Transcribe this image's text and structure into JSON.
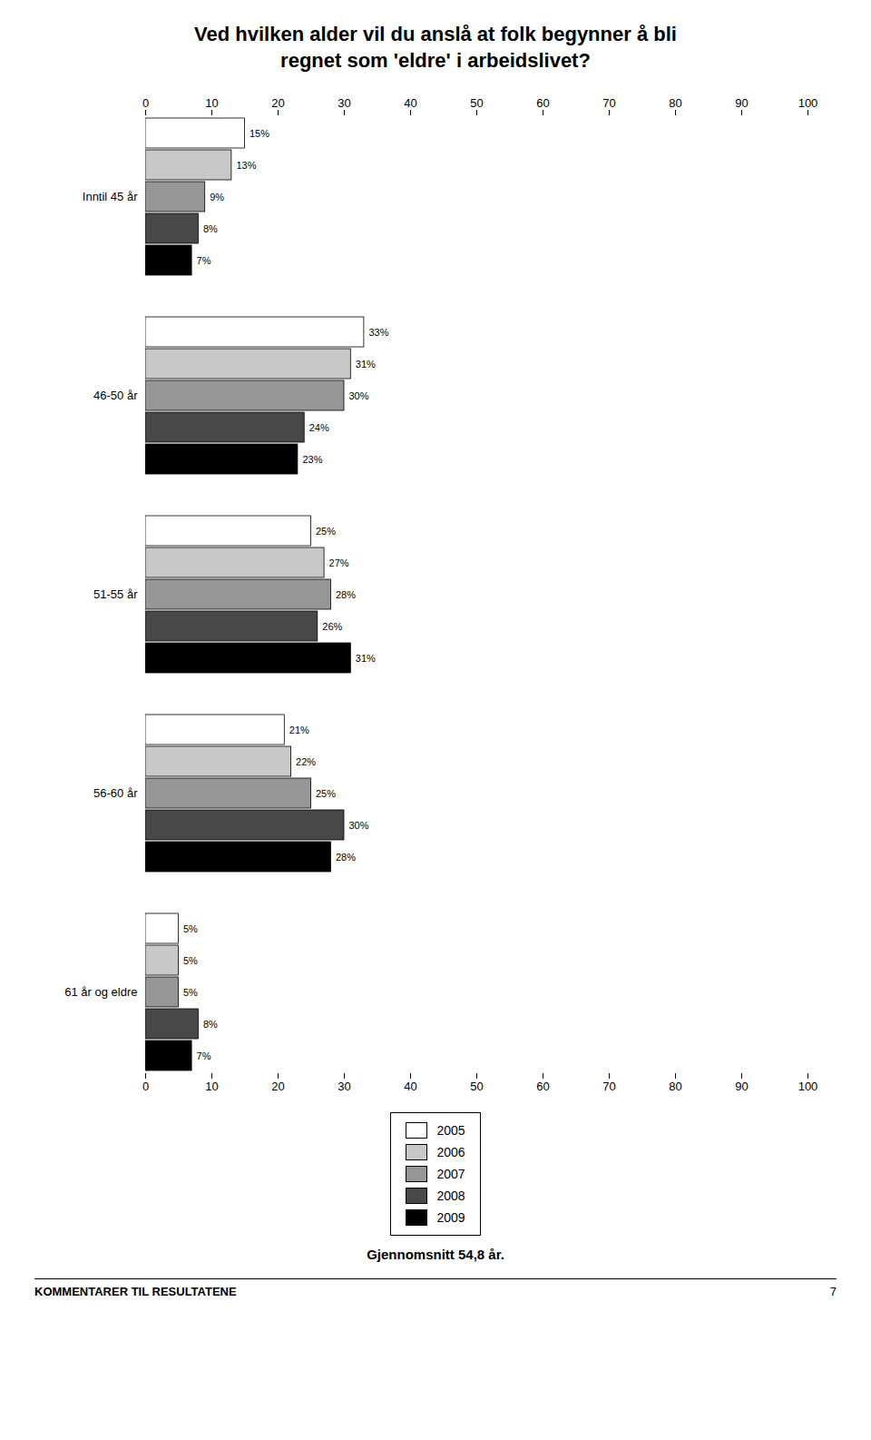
{
  "chart_data": {
    "type": "bar",
    "orientation": "horizontal",
    "title": "Ved hvilken alder vil du anslå at folk begynner å bli\nregnet som 'eldre' i arbeidslivet?",
    "categories": [
      "Inntil 45 år",
      "46-50 år",
      "51-55 år",
      "56-60 år",
      "61 år og eldre"
    ],
    "series": [
      {
        "name": "2005",
        "color": "#ffffff",
        "values": [
          15,
          33,
          25,
          21,
          5
        ],
        "value_labels": [
          "15%",
          "33%",
          "25%",
          "21%",
          "5%"
        ]
      },
      {
        "name": "2006",
        "color": "#c8c8c8",
        "values": [
          13,
          31,
          27,
          22,
          5
        ],
        "value_labels": [
          "13%",
          "31%",
          "27%",
          "22%",
          "5%"
        ]
      },
      {
        "name": "2007",
        "color": "#969696",
        "values": [
          9,
          30,
          28,
          25,
          5
        ],
        "value_labels": [
          "9%",
          "30%",
          "28%",
          "25%",
          "5%"
        ]
      },
      {
        "name": "2008",
        "color": "#484848",
        "values": [
          8,
          24,
          26,
          30,
          8
        ],
        "value_labels": [
          "8%",
          "24%",
          "26%",
          "30%",
          "8%"
        ]
      },
      {
        "name": "2009",
        "color": "#000000",
        "values": [
          7,
          23,
          31,
          28,
          7
        ],
        "value_labels": [
          "7%",
          "23%",
          "31%",
          "28%",
          "7%"
        ]
      }
    ],
    "xlim": [
      0,
      100
    ],
    "xticks": [
      0,
      10,
      20,
      30,
      40,
      50,
      60,
      70,
      80,
      90,
      100
    ],
    "data_labels": true,
    "legend": "bottom",
    "grid": false,
    "annotations": [
      "Gjennomsnitt 54,8 år.",
      "KOMMENTARER TIL RESULTATENE",
      "7"
    ]
  }
}
